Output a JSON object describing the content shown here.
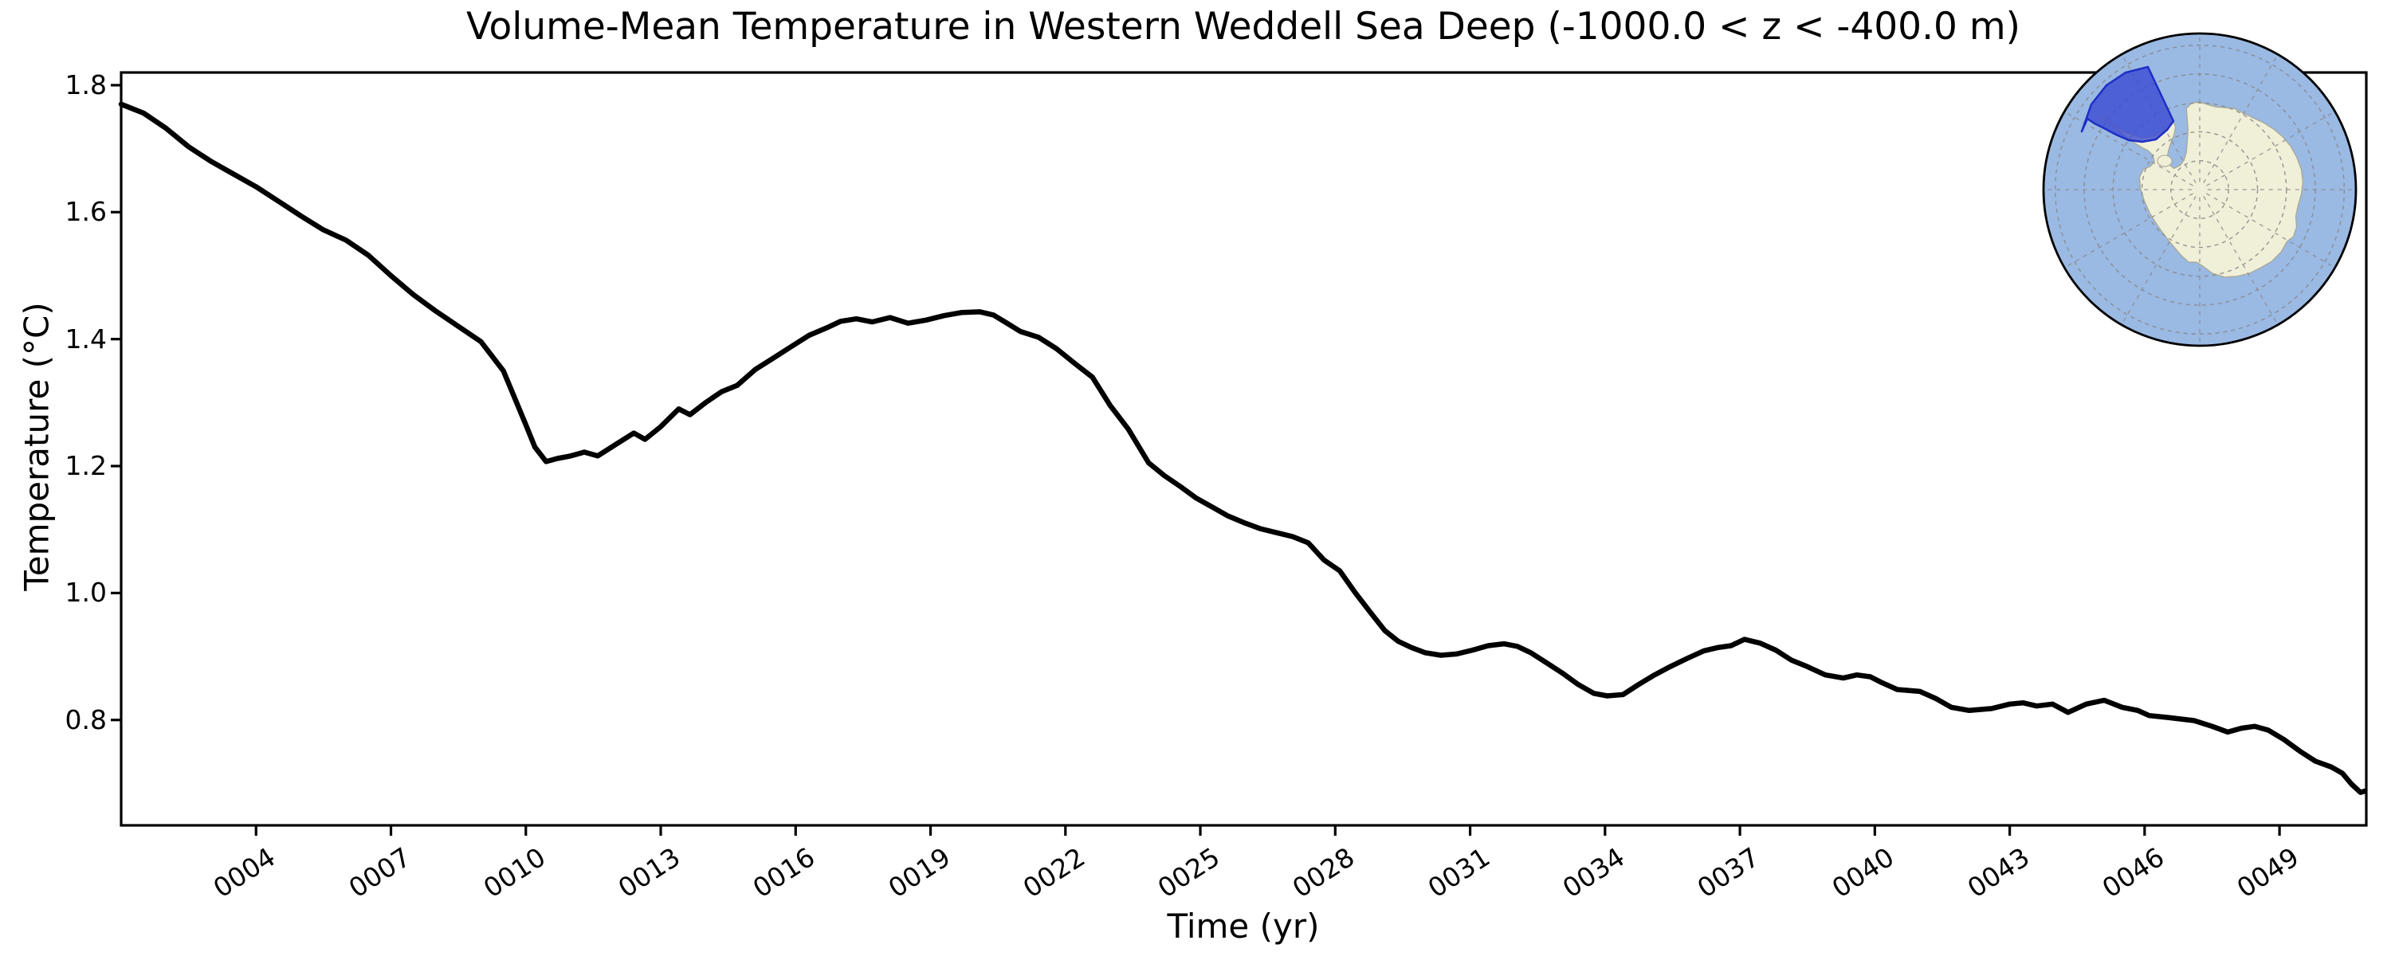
{
  "chart": {
    "title": "Volume-Mean Temperature in Western Weddell Sea Deep (-1000.0 < z < -400.0 m)",
    "xlabel": "Time (yr)",
    "ylabel": "Temperature (°C)"
  },
  "chart_data": {
    "type": "line",
    "title": "Volume-Mean Temperature in Western Weddell Sea Deep (-1000.0 < z < -400.0 m)",
    "xlabel": "Time (yr)",
    "ylabel": "Temperature (°C)",
    "x_tick_labels": [
      "0004",
      "0007",
      "0010",
      "0013",
      "0016",
      "0019",
      "0022",
      "0025",
      "0028",
      "0031",
      "0034",
      "0037",
      "0040",
      "0043",
      "0046",
      "0049"
    ],
    "x_tick_values": [
      4,
      7,
      10,
      13,
      16,
      19,
      22,
      25,
      28,
      31,
      34,
      37,
      40,
      43,
      46,
      49
    ],
    "y_tick_labels": [
      "1.8",
      "1.6",
      "1.4",
      "1.2",
      "1.0",
      "0.8"
    ],
    "y_tick_values": [
      1.8,
      1.6,
      1.4,
      1.2,
      1.0,
      0.8
    ],
    "xlim": [
      1.0,
      50.93
    ],
    "ylim": [
      0.634,
      1.82
    ],
    "grid": false,
    "legend": "none",
    "line_color": "#000000",
    "line_width": 6.5,
    "series_name": "volume-mean temperature",
    "x": [
      1.0,
      1.5,
      2.0,
      2.5,
      3.0,
      3.5,
      4.0,
      4.5,
      5.0,
      5.5,
      6.0,
      6.5,
      7.0,
      7.5,
      8.0,
      8.5,
      9.0,
      9.5,
      10.0,
      10.2,
      10.45,
      10.7,
      11.0,
      11.3,
      11.6,
      12.0,
      12.4,
      12.65,
      13.0,
      13.4,
      13.65,
      14.0,
      14.35,
      14.7,
      15.1,
      15.5,
      15.9,
      16.3,
      16.7,
      17.0,
      17.35,
      17.7,
      18.1,
      18.5,
      18.9,
      19.3,
      19.7,
      20.1,
      20.4,
      20.7,
      21.0,
      21.4,
      21.8,
      22.2,
      22.6,
      23.0,
      23.4,
      23.85,
      24.2,
      24.55,
      24.9,
      25.3,
      25.6,
      26.0,
      26.35,
      26.7,
      27.05,
      27.4,
      27.75,
      28.1,
      28.45,
      28.8,
      29.1,
      29.4,
      29.7,
      30.0,
      30.35,
      30.7,
      31.05,
      31.4,
      31.75,
      32.05,
      32.35,
      32.7,
      33.05,
      33.4,
      33.75,
      34.05,
      34.4,
      34.75,
      35.1,
      35.45,
      35.8,
      36.2,
      36.5,
      36.8,
      37.1,
      37.45,
      37.8,
      38.15,
      38.5,
      38.9,
      39.3,
      39.6,
      39.9,
      40.15,
      40.5,
      41.0,
      41.35,
      41.7,
      42.1,
      42.6,
      43.0,
      43.3,
      43.6,
      43.95,
      44.3,
      44.7,
      45.1,
      45.5,
      45.85,
      46.1,
      46.5,
      47.1,
      47.5,
      47.85,
      48.15,
      48.45,
      48.75,
      49.1,
      49.45,
      49.8,
      50.15,
      50.4,
      50.6,
      50.8,
      50.9
    ],
    "y": [
      1.77,
      1.756,
      1.732,
      1.703,
      1.68,
      1.66,
      1.64,
      1.617,
      1.594,
      1.572,
      1.556,
      1.532,
      1.5,
      1.47,
      1.444,
      1.42,
      1.396,
      1.35,
      1.265,
      1.23,
      1.207,
      1.212,
      1.216,
      1.222,
      1.216,
      1.234,
      1.252,
      1.242,
      1.262,
      1.29,
      1.281,
      1.3,
      1.317,
      1.327,
      1.352,
      1.37,
      1.388,
      1.406,
      1.418,
      1.428,
      1.432,
      1.427,
      1.434,
      1.425,
      1.43,
      1.437,
      1.442,
      1.443,
      1.438,
      1.425,
      1.412,
      1.403,
      1.385,
      1.362,
      1.34,
      1.295,
      1.258,
      1.205,
      1.185,
      1.168,
      1.15,
      1.134,
      1.122,
      1.11,
      1.101,
      1.095,
      1.089,
      1.079,
      1.052,
      1.035,
      1.0,
      0.968,
      0.941,
      0.924,
      0.914,
      0.906,
      0.902,
      0.904,
      0.91,
      0.917,
      0.92,
      0.916,
      0.906,
      0.89,
      0.874,
      0.856,
      0.842,
      0.838,
      0.84,
      0.856,
      0.871,
      0.884,
      0.896,
      0.909,
      0.914,
      0.917,
      0.927,
      0.921,
      0.91,
      0.894,
      0.884,
      0.871,
      0.866,
      0.871,
      0.868,
      0.859,
      0.848,
      0.845,
      0.834,
      0.82,
      0.815,
      0.818,
      0.825,
      0.827,
      0.822,
      0.825,
      0.812,
      0.825,
      0.831,
      0.82,
      0.815,
      0.807,
      0.804,
      0.799,
      0.79,
      0.781,
      0.787,
      0.79,
      0.784,
      0.769,
      0.751,
      0.735,
      0.726,
      0.716,
      0.699,
      0.686,
      0.688
    ],
    "inset_map": {
      "description": "South polar stereographic map of Antarctica with highlighted Western Weddell Sea region",
      "ocean_color": "#9ab9e3",
      "land_color": "#f0efd8",
      "coast_color": "#a8a68e",
      "graticule_color": "#8a8a8a",
      "region_fill": "#3a4ad2",
      "region_edge": "#1f2ec4",
      "border_color": "#000000"
    }
  }
}
